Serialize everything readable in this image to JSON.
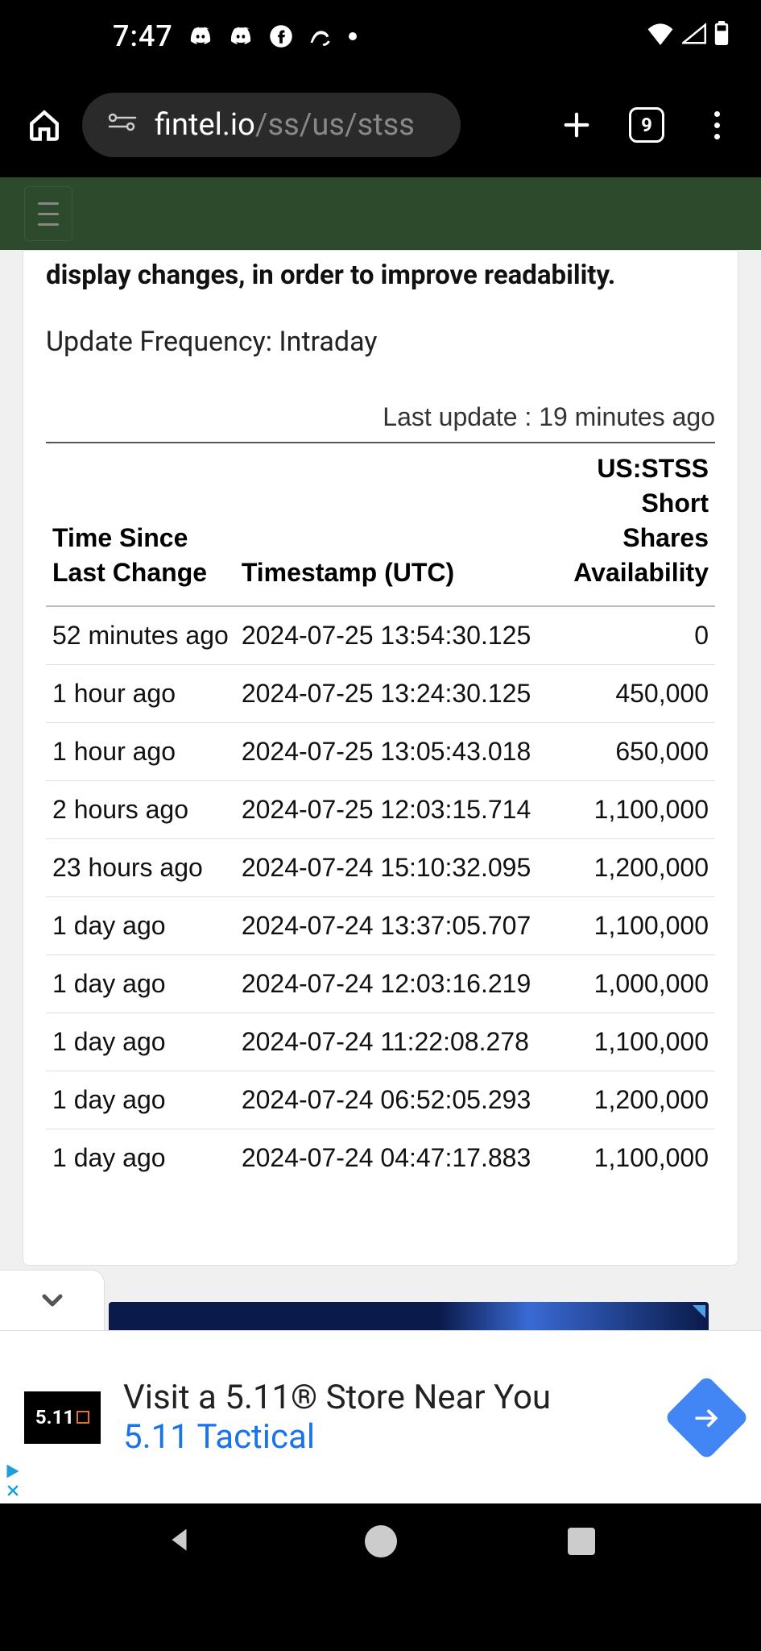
{
  "status": {
    "time": "7:47",
    "tab_count": "9"
  },
  "url": {
    "host": "fintel.io",
    "path": "/ss/us/stss"
  },
  "page": {
    "partial_heading": "display changes, in order to improve readability.",
    "update_freq": "Update Frequency: Intraday",
    "last_update": "Last update : 19 minutes ago",
    "columns": {
      "c1": "Time Since Last Change",
      "c2": "Timestamp (UTC)",
      "c3": "US:STSS Short Shares Availability"
    },
    "rows": [
      {
        "t": "52 minutes ago",
        "ts": "2024-07-25 13:54:30.125",
        "v": "0"
      },
      {
        "t": "1 hour ago",
        "ts": "2024-07-25 13:24:30.125",
        "v": "450,000"
      },
      {
        "t": "1 hour ago",
        "ts": "2024-07-25 13:05:43.018",
        "v": "650,000"
      },
      {
        "t": "2 hours ago",
        "ts": "2024-07-25 12:03:15.714",
        "v": "1,100,000"
      },
      {
        "t": "23 hours ago",
        "ts": "2024-07-24 15:10:32.095",
        "v": "1,200,000"
      },
      {
        "t": "1 day ago",
        "ts": "2024-07-24 13:37:05.707",
        "v": "1,100,000"
      },
      {
        "t": "1 day ago",
        "ts": "2024-07-24 12:03:16.219",
        "v": "1,000,000"
      },
      {
        "t": "1 day ago",
        "ts": "2024-07-24 11:22:08.278",
        "v": "1,100,000"
      },
      {
        "t": "1 day ago",
        "ts": "2024-07-24 06:52:05.293",
        "v": "1,200,000"
      },
      {
        "t": "1 day ago",
        "ts": "2024-07-24 04:47:17.883",
        "v": "1,100,000"
      }
    ]
  },
  "ad": {
    "logo": "5.11",
    "title": "Visit a 5.11® Store Near You",
    "sub": "5.11 Tactical"
  }
}
